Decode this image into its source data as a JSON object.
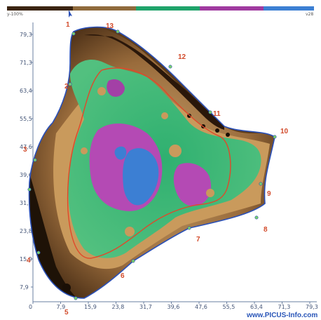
{
  "header": {
    "left_label": "y-100%",
    "right_label": "v28",
    "color_scale": [
      "#3b2411",
      "#8f6a3c",
      "#1fa36a",
      "#a03aa0",
      "#3c7fd3"
    ]
  },
  "axes": {
    "y_ticks": [
      "79,3",
      "71,3",
      "63,4",
      "55,5",
      "47,6",
      "39,6",
      "31,7",
      "23,8",
      "15,9",
      "7,9"
    ],
    "x_ticks": [
      "0",
      "7,9",
      "15,9",
      "23,8",
      "31,7",
      "39,6",
      "47,6",
      "55,5",
      "63,4",
      "71,3",
      "79,3"
    ]
  },
  "markers": [
    {
      "id": "1",
      "label": "1"
    },
    {
      "id": "2",
      "label": "2"
    },
    {
      "id": "3",
      "label": "3"
    },
    {
      "id": "4",
      "label": "4"
    },
    {
      "id": "5",
      "label": "5"
    },
    {
      "id": "6",
      "label": "6"
    },
    {
      "id": "7",
      "label": "7"
    },
    {
      "id": "8",
      "label": "8"
    },
    {
      "id": "9",
      "label": "9"
    },
    {
      "id": "10",
      "label": "10"
    },
    {
      "id": "11",
      "label": "11"
    },
    {
      "id": "12",
      "label": "12"
    },
    {
      "id": "13",
      "label": "13"
    }
  ],
  "watermark": "www.PICUS-Info.com",
  "colors": {
    "outline": "#2a50b8",
    "contour": "#e0482a",
    "marker_text": "#d24a2a",
    "axis": "#6a7fa0"
  }
}
